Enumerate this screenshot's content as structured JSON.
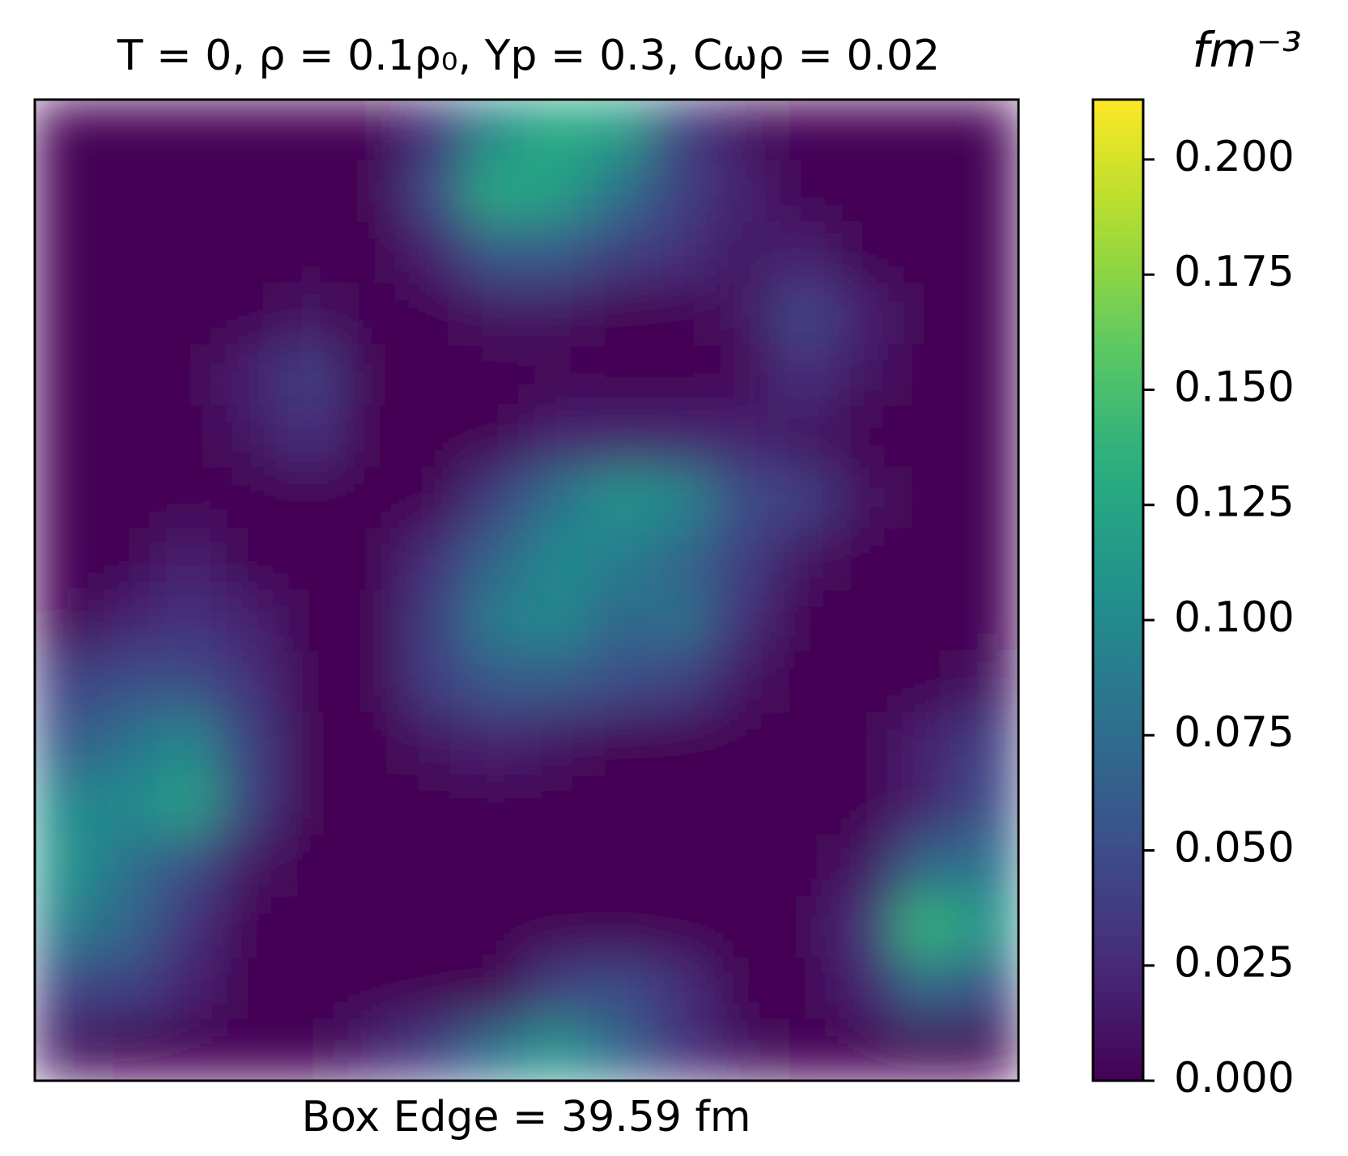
{
  "chart_data": {
    "type": "heatmap",
    "title": "T = 0, ρ = 0.1ρ₀, Yp = 0.3, Cωρ = 0.02",
    "x_label": "Box Edge = 39.59 fm",
    "colorbar_label": "fm⁻³",
    "colormap": "viridis",
    "vlim": [
      0,
      0.213
    ],
    "cticks": [
      {
        "value": 0,
        "label": "0.000"
      },
      0.025,
      {
        "value": 0.05,
        "label": "0.050"
      },
      0.075,
      {
        "value": 0.1,
        "label": "0.100"
      },
      0.125,
      {
        "value": 0.15,
        "label": "0.150"
      },
      0.175,
      {
        "value": 0.2,
        "label": "0.200"
      }
    ],
    "z": [
      [
        0,
        0,
        0,
        0,
        0,
        0,
        0.03,
        0.1,
        0.13,
        0.12,
        0.04,
        0.01,
        0,
        0,
        0,
        0
      ],
      [
        0,
        0,
        0,
        0,
        0,
        0,
        0.05,
        0.13,
        0.12,
        0.08,
        0.04,
        0.02,
        0,
        0,
        0,
        0
      ],
      [
        0,
        0,
        0,
        0,
        0,
        0,
        0.02,
        0.06,
        0.06,
        0.04,
        0.03,
        0.01,
        0.02,
        0,
        0,
        0
      ],
      [
        0,
        0,
        0,
        0,
        0.01,
        0,
        0,
        0.01,
        0.01,
        0,
        0,
        0.01,
        0.045,
        0.02,
        0,
        0
      ],
      [
        0,
        0,
        0,
        0.02,
        0.04,
        0,
        0,
        0,
        0,
        0,
        0,
        0,
        0.03,
        0.01,
        0,
        0
      ],
      [
        0,
        0,
        0,
        0.01,
        0.03,
        0,
        0,
        0,
        0.02,
        0.02,
        0.02,
        0.02,
        0.01,
        0,
        0,
        0
      ],
      [
        0,
        0,
        0,
        0,
        0,
        0,
        0,
        0.04,
        0.08,
        0.11,
        0.1,
        0.05,
        0.04,
        0.01,
        0,
        0
      ],
      [
        0,
        0,
        0.02,
        0,
        0,
        0,
        0.03,
        0.07,
        0.1,
        0.09,
        0.07,
        0.04,
        0.01,
        0,
        0,
        0
      ],
      [
        0,
        0.02,
        0.03,
        0.02,
        0,
        0,
        0.04,
        0.09,
        0.1,
        0.07,
        0.08,
        0.03,
        0,
        0,
        0,
        0
      ],
      [
        0.04,
        0.05,
        0.05,
        0.03,
        0,
        0,
        0.04,
        0.06,
        0.06,
        0.05,
        0.04,
        0.01,
        0,
        0,
        0,
        0.01
      ],
      [
        0.06,
        0.08,
        0.1,
        0.04,
        0,
        0,
        0.01,
        0.02,
        0.01,
        0,
        0,
        0,
        0,
        0,
        0.02,
        0.04
      ],
      [
        0.1,
        0.1,
        0.12,
        0.04,
        0,
        0,
        0,
        0,
        0,
        0,
        0,
        0,
        0,
        0,
        0.02,
        0.05
      ],
      [
        0.11,
        0.08,
        0.05,
        0.01,
        0,
        0,
        0,
        0,
        0,
        0,
        0,
        0,
        0,
        0.01,
        0.07,
        0.08
      ],
      [
        0.09,
        0.07,
        0.03,
        0,
        0,
        0,
        0,
        0,
        0,
        0,
        0,
        0,
        0,
        0.03,
        0.14,
        0.11
      ],
      [
        0.04,
        0.04,
        0.02,
        0,
        0,
        0,
        0,
        0,
        0.04,
        0.05,
        0.03,
        0,
        0,
        0.02,
        0.07,
        0.05
      ],
      [
        0.01,
        0,
        0,
        0,
        0,
        0.02,
        0.04,
        0.08,
        0.11,
        0.07,
        0.03,
        0.01,
        0,
        0,
        0,
        0
      ]
    ]
  }
}
